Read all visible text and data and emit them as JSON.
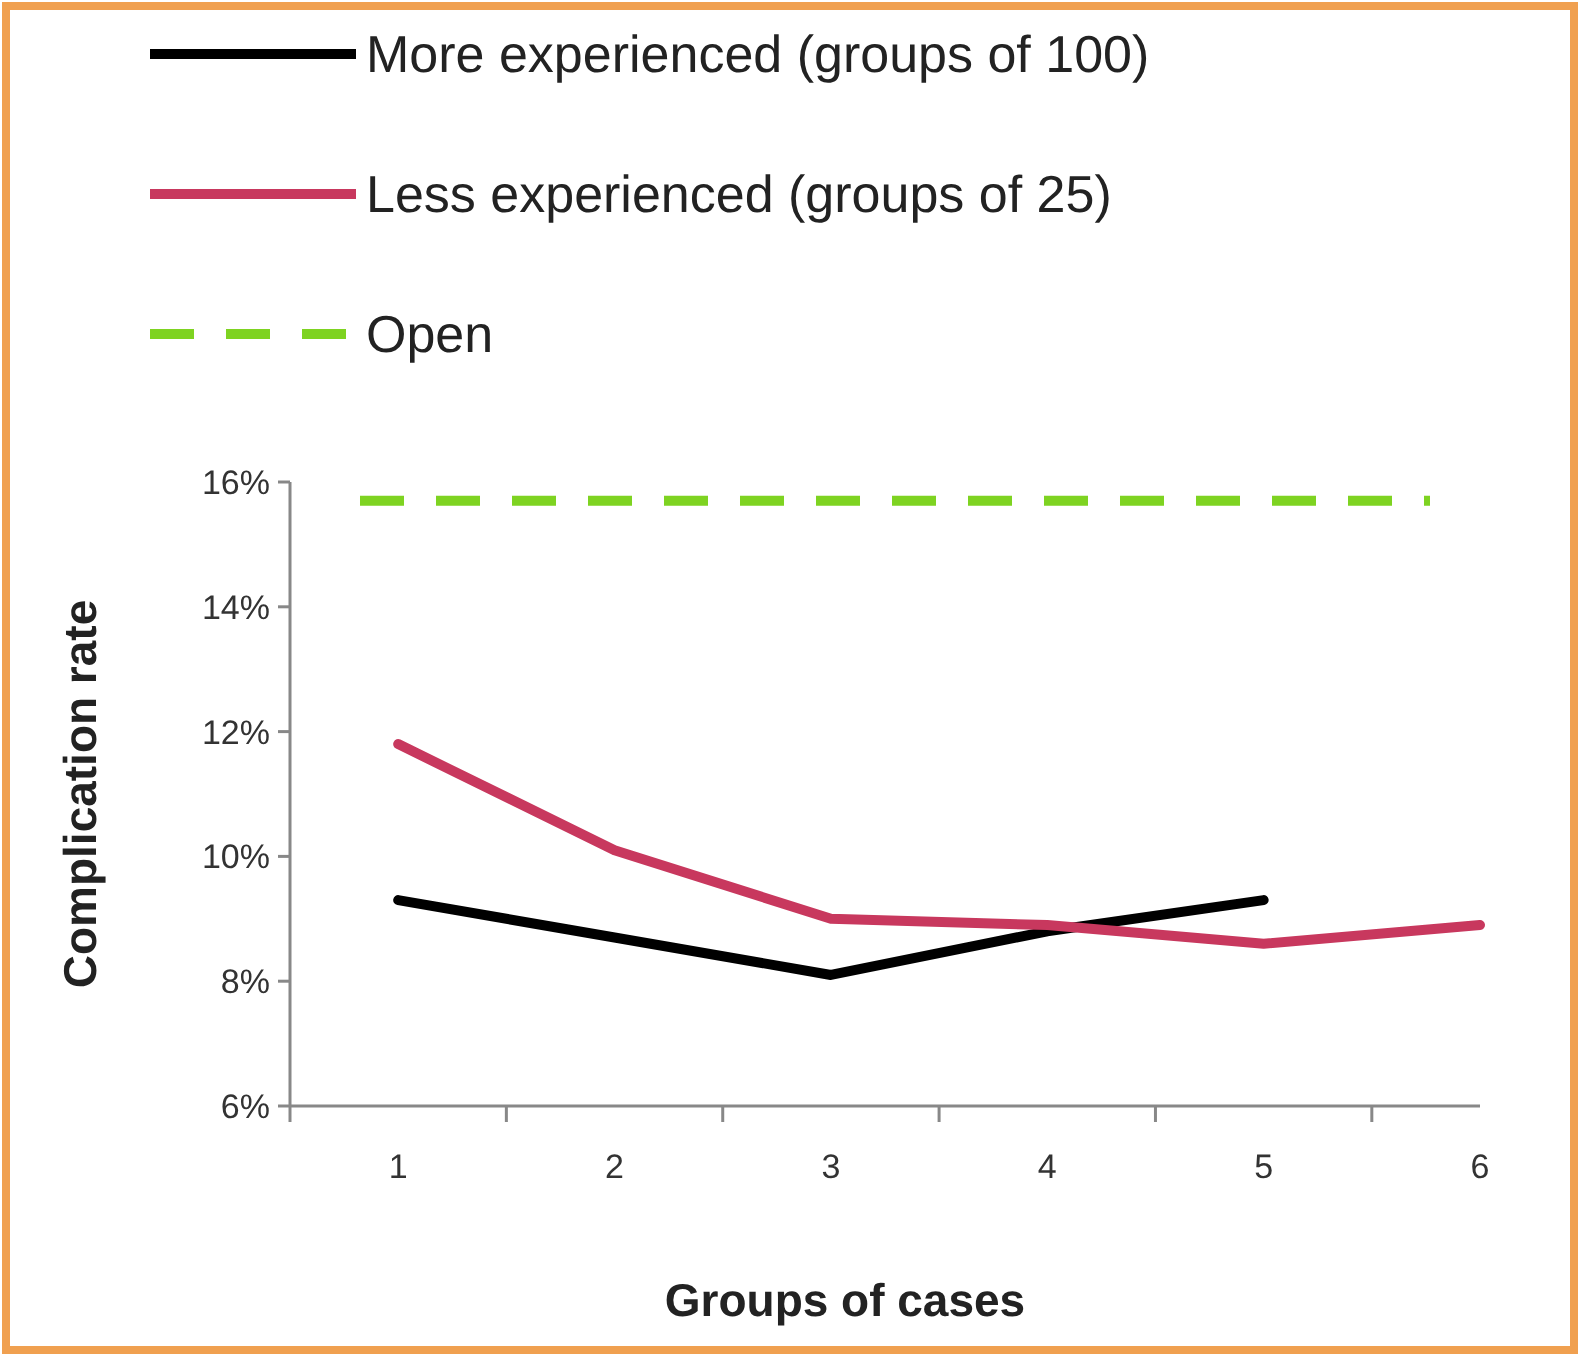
{
  "chart_data": {
    "type": "line",
    "xlabel": "Groups of cases",
    "ylabel": "Complication rate",
    "categories": [
      "1",
      "2",
      "3",
      "4",
      "5",
      "6"
    ],
    "series": [
      {
        "name": "More experienced (groups of 100)",
        "color": "#000000",
        "values": [
          9.3,
          8.7,
          8.1,
          8.8,
          9.3,
          null
        ]
      },
      {
        "name": "Less experienced (groups of 25)",
        "color": "#c8385e",
        "values": [
          11.8,
          10.1,
          9.0,
          8.9,
          8.6,
          8.9
        ]
      }
    ],
    "ref_lines": [
      {
        "axis": "y",
        "value": 15.7,
        "label": "Open",
        "color": "#7ed321",
        "line_style": "dashed"
      }
    ],
    "ylim": [
      6,
      16
    ],
    "yticks": [
      {
        "value": 6,
        "label": "6%"
      },
      {
        "value": 8,
        "label": "8%"
      },
      {
        "value": 10,
        "label": "10%"
      },
      {
        "value": 12,
        "label": "12%"
      },
      {
        "value": 14,
        "label": "14%"
      },
      {
        "value": 16,
        "label": "16%"
      }
    ],
    "grid": false,
    "legend": "top",
    "marker": "none",
    "line_style": "solid"
  }
}
